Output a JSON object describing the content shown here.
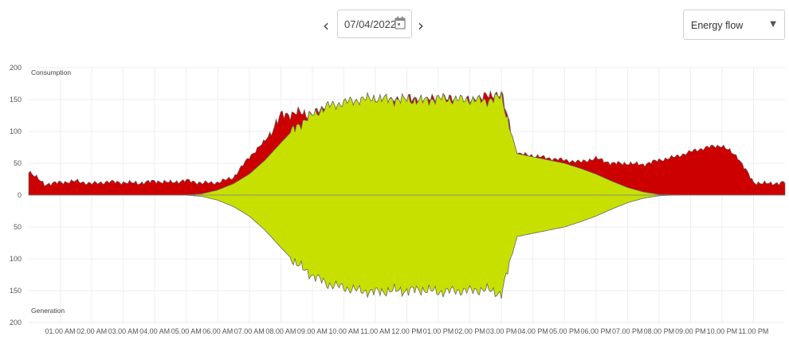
{
  "toolbar": {
    "prev_label": "‹",
    "next_label": "›",
    "date_value": "07/04/2022",
    "view_select": "Energy flow"
  },
  "icons": {
    "calendar": "calendar-icon",
    "prev": "chevron-left-icon",
    "next": "chevron-right-icon",
    "dropdown": "caret-down-icon"
  },
  "chart_data": {
    "type": "area",
    "top_label": "Consumption",
    "bottom_label": "Generation",
    "y_ticks": [
      "200",
      "150",
      "100",
      "50",
      "0",
      "50",
      "100",
      "150",
      "200"
    ],
    "ylim": [
      -200,
      200
    ],
    "x_tick_labels": [
      "01.00 AM",
      "02.00 AM",
      "03.00 AM",
      "04.00 AM",
      "05.00 AM",
      "06.00 AM",
      "07.00 AM",
      "08.00 AM",
      "09.00 AM",
      "10.00 AM",
      "11.00 AM",
      "12.00 PM",
      "01.00 PM",
      "02.00 PM",
      "03.00 PM",
      "04.00 PM",
      "05.00 PM",
      "06.00 PM",
      "07.00 PM",
      "08.00 PM",
      "09.00 PM",
      "10.00 PM",
      "11.00 PM"
    ],
    "grid": true,
    "colors": {
      "consumption_from_grid": "#cc0000",
      "self_consumed_solar": "#c8e000",
      "outline": "#666666"
    },
    "x_hours": [
      0,
      0.5,
      1,
      1.5,
      2,
      2.5,
      3,
      3.5,
      4,
      4.5,
      5,
      5.5,
      6,
      6.5,
      7,
      7.5,
      8,
      8.5,
      9,
      9.5,
      10,
      10.5,
      11,
      11.5,
      12,
      12.5,
      13,
      13.5,
      14,
      14.5,
      15,
      15.5,
      16,
      16.5,
      17,
      17.5,
      18,
      18.5,
      19,
      19.5,
      20,
      20.5,
      21,
      21.5,
      22,
      22.5,
      23,
      23.5,
      24
    ],
    "series": [
      {
        "name": "Consumption",
        "values": [
          38,
          17,
          20,
          22,
          18,
          21,
          20,
          19,
          22,
          20,
          23,
          19,
          20,
          28,
          60,
          85,
          125,
          130,
          125,
          140,
          130,
          135,
          140,
          145,
          150,
          148,
          152,
          150,
          148,
          155,
          158,
          65,
          62,
          58,
          55,
          52,
          58,
          50,
          50,
          48,
          55,
          60,
          68,
          75,
          78,
          60,
          20,
          18,
          20
        ]
      },
      {
        "name": "Generation",
        "values": [
          0,
          0,
          0,
          0,
          0,
          0,
          0,
          0,
          0,
          0,
          0,
          2,
          8,
          18,
          33,
          55,
          82,
          108,
          126,
          140,
          145,
          150,
          152,
          150,
          150,
          148,
          152,
          150,
          150,
          148,
          155,
          65,
          60,
          55,
          50,
          42,
          33,
          22,
          12,
          5,
          1,
          0,
          0,
          0,
          0,
          0,
          0,
          0,
          0
        ]
      }
    ]
  }
}
